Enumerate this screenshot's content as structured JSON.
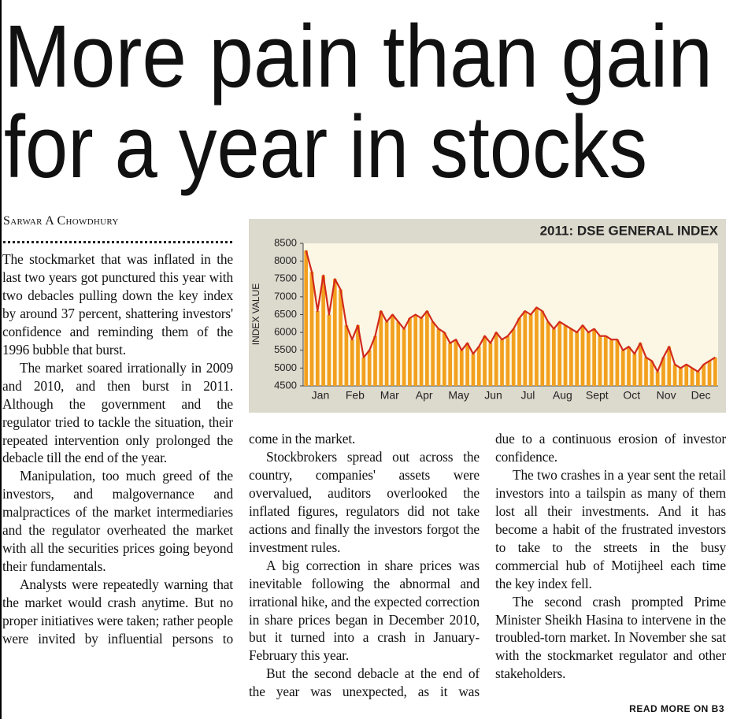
{
  "headline": [
    "More pain than gain",
    "for a year in stocks"
  ],
  "byline": "Sarwar A Chowdhury",
  "columns": [
    [
      "The stockmarket that was inflated in the last two years got punctured this year with two debacles pulling down the key index by around 37 percent, shattering investors' confidence and reminding them of the 1996 bubble that burst.",
      "The market soared irrationally in 2009 and 2010, and then burst in 2011. Although the government and the regulator tried to tackle the situation, their repeated intervention only prolonged the debacle till the end of the year.",
      "Manipulation, too much greed of the investors, and malgovernance and malpractices of the market intermediaries and the regulator overheated the market with all the securities prices going beyond their fundamentals.",
      "Analysts were repeatedly warning that the market would crash anytime. But no proper initiatives were taken; rather people were invited by influential persons to"
    ],
    [
      "come in the market.",
      "Stockbrokers spread out across the country, companies' assets were overvalued, auditors overlooked the inflated figures, regulators did not take actions and finally the investors forgot the investment rules.",
      "A big correction in share prices was inevitable following the abnormal and irrational hike, and the expected correction in share prices began in December 2010, but it turned into a crash in January-February this year.",
      "But the second debacle at the end of the year was unexpected, as it was"
    ],
    [
      "due to a continuous erosion of investor confidence.",
      "The two crashes in a year sent the retail investors into a tailspin as many of them lost all their investments. And it has become a habit of the frustrated investors to take to the streets in the busy commercial hub of Motijheel each time the key index fell.",
      "The second crash prompted Prime Minister Sheikh Hasina to intervene in the troubled-torn market. In November she sat with the stockmarket regulator and other stakeholders."
    ]
  ],
  "read_more": "READ MORE ON B3",
  "chart_data": {
    "type": "bar",
    "title": "2011: DSE GENERAL INDEX",
    "y_label": "INDEX VALUE",
    "categories": [
      null,
      null,
      null,
      "Jan",
      null,
      null,
      null,
      null,
      null,
      "Feb",
      null,
      null,
      null,
      null,
      null,
      "Mar",
      null,
      null,
      null,
      null,
      null,
      "Apr",
      null,
      null,
      null,
      null,
      null,
      "May",
      null,
      null,
      null,
      null,
      null,
      "Jun",
      null,
      null,
      null,
      null,
      null,
      "Jul",
      null,
      null,
      null,
      null,
      null,
      "Aug",
      null,
      null,
      null,
      null,
      null,
      "Sept",
      null,
      null,
      null,
      null,
      null,
      "Oct",
      null,
      null,
      null,
      null,
      null,
      "Nov",
      null,
      null,
      null,
      null,
      null,
      "Dec",
      null,
      null
    ],
    "values": [
      8300,
      7700,
      6600,
      7600,
      6500,
      7500,
      7200,
      6200,
      5800,
      6200,
      5300,
      5500,
      5900,
      6600,
      6300,
      6500,
      6300,
      6100,
      6400,
      6500,
      6400,
      6600,
      6300,
      6100,
      6000,
      5700,
      5800,
      5500,
      5700,
      5400,
      5600,
      5900,
      5700,
      6000,
      5800,
      5900,
      6100,
      6400,
      6600,
      6500,
      6700,
      6600,
      6300,
      6100,
      6300,
      6200,
      6100,
      6000,
      6200,
      6000,
      6100,
      5900,
      5900,
      5800,
      5800,
      5500,
      5600,
      5400,
      5700,
      5300,
      5200,
      4900,
      5300,
      5600,
      5100,
      5000,
      5100,
      5000,
      4900,
      5100,
      5200,
      5300
    ],
    "color": "#f2a01e",
    "line_color": "#d22a1c",
    "ylim": [
      4500,
      8500
    ],
    "yticks": [
      4500,
      5000,
      5500,
      6000,
      6500,
      7000,
      7500,
      8000,
      8500
    ]
  }
}
